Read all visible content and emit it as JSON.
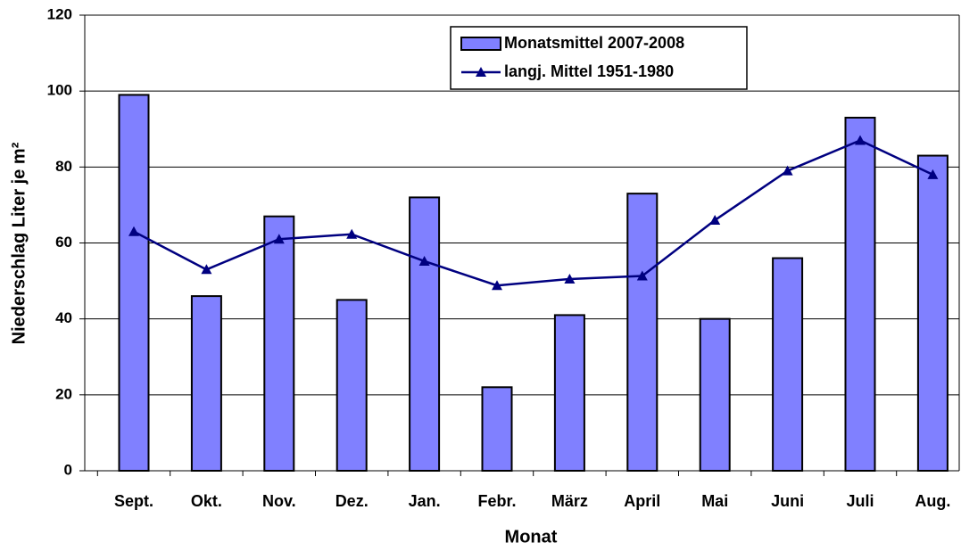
{
  "chart_data": {
    "type": "bar",
    "x_label": "Monat",
    "y_label": "Niederschlag Liter je m²",
    "categories": [
      "Sept.",
      "Okt.",
      "Nov.",
      "Dez.",
      "Jan.",
      "Febr.",
      "März",
      "April",
      "Mai",
      "Juni",
      "Juli",
      "Aug."
    ],
    "series": [
      {
        "name": "Monatsmittel 2007-2008",
        "type": "bar",
        "color": "#8080ff",
        "values": [
          99,
          46,
          67,
          45,
          72,
          22,
          41,
          73,
          40,
          56,
          93,
          83
        ]
      },
      {
        "name": "langj. Mittel 1951-1980",
        "type": "line",
        "color": "#000080",
        "values": [
          63,
          53,
          61,
          62.3,
          55.2,
          48.8,
          50.5,
          51.3,
          66,
          79,
          87,
          78
        ]
      }
    ],
    "ylim": [
      0,
      120
    ],
    "yticks": [
      0,
      20,
      40,
      60,
      80,
      100,
      120
    ],
    "grid": true,
    "legend": "top-center"
  }
}
